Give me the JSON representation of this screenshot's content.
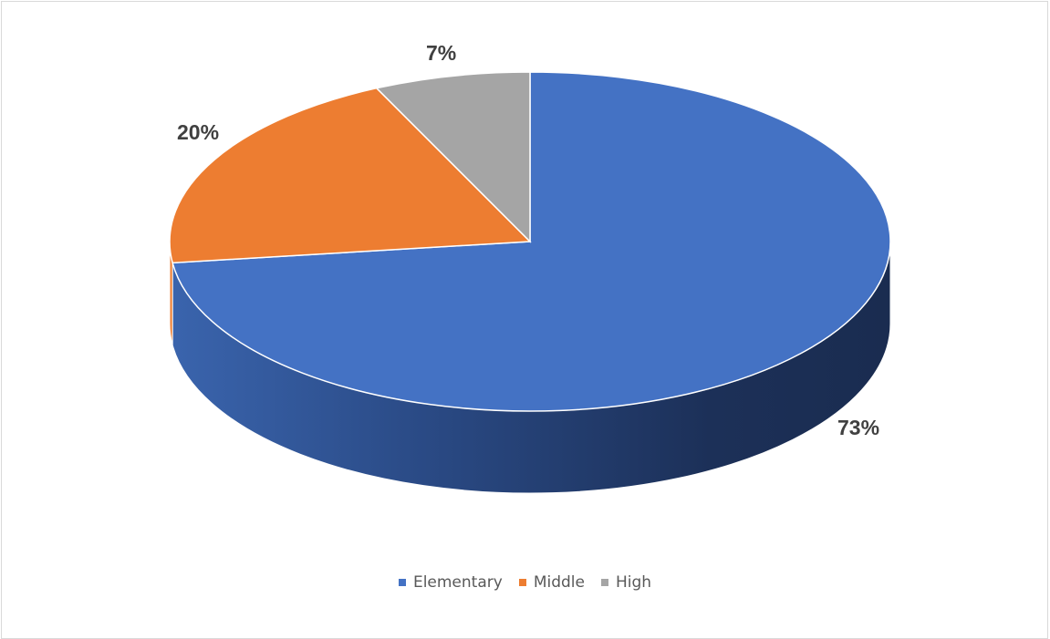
{
  "chart_data": {
    "type": "pie",
    "title": "",
    "categories": [
      "Elementary",
      "Middle",
      "High"
    ],
    "values": [
      73,
      20,
      7
    ],
    "labels": [
      "73%",
      "20%",
      "7%"
    ],
    "colors": [
      "#4472C4",
      "#ED7D31",
      "#A5A5A5"
    ],
    "style": "3d",
    "legend_position": "bottom"
  },
  "legend": [
    {
      "label": "Elementary",
      "color": "#4472C4"
    },
    {
      "label": "Middle",
      "color": "#ED7D31"
    },
    {
      "label": "High",
      "color": "#A5A5A5"
    }
  ]
}
